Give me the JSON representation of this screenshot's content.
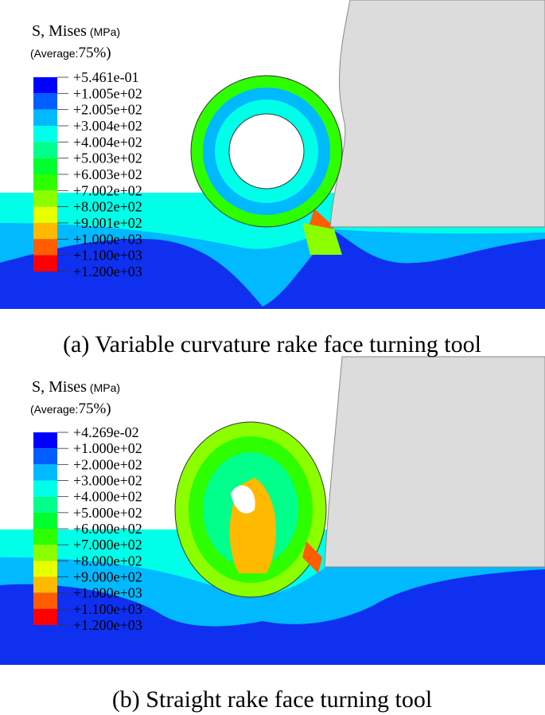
{
  "legend_colors": [
    "#0000ff",
    "#005dff",
    "#00b9ff",
    "#00ffe8",
    "#00ff8b",
    "#00ff2e",
    "#2eff00",
    "#8bff00",
    "#e8ff00",
    "#ffb900",
    "#ff5d00",
    "#ff0000"
  ],
  "panels": [
    {
      "legend": {
        "title": "S, Mises",
        "unit": "(MPa)",
        "average_label": "(Average:",
        "average_value": "75%)",
        "labels": [
          "+5.461e-01",
          "+1.005e+02",
          "+2.005e+02",
          "+3.004e+02",
          "+4.004e+02",
          "+5.003e+02",
          "+6.003e+02",
          "+7.002e+02",
          "+8.002e+02",
          "+9.001e+02",
          "+1.000e+03",
          "+1.100e+03",
          "+1.200e+03"
        ]
      },
      "caption": "(a) Variable curvature rake face turning tool"
    },
    {
      "legend": {
        "title": "S, Mises",
        "unit": "(MPa)",
        "average_label": "(Average:",
        "average_value": "75%)",
        "labels": [
          "+4.269e-02",
          "+1.000e+02",
          "+2.000e+02",
          "+3.000e+02",
          "+4.000e+02",
          "+5.000e+02",
          "+6.000e+02",
          "+7.000e+02",
          "+8.000e+02",
          "+9.000e+02",
          "+1.000e+03",
          "+1.100e+03",
          "+1.200e+03"
        ]
      },
      "caption": "(b) Straight rake face turning tool"
    }
  ]
}
